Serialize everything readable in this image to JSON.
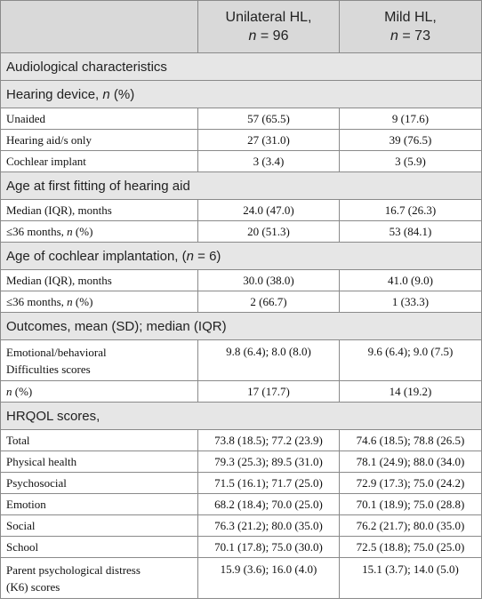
{
  "header": {
    "col1": "",
    "col2_line1": "Unilateral HL,",
    "col2_n": "n",
    "col2_line2_rest": " = 96",
    "col3_line1": "Mild HL,",
    "col3_n": "n",
    "col3_line2_rest": " = 73"
  },
  "sections": {
    "audiological": "Audiological characteristics",
    "hearing_device_pre": "Hearing device, ",
    "hearing_device_n": "n",
    "hearing_device_post": " (%)",
    "age_fitting": "Age at first fitting of hearing aid",
    "age_ci_pre": "Age of cochlear implantation, (",
    "age_ci_n": "n",
    "age_ci_post": " = 6)",
    "outcomes": "Outcomes, mean (SD); median (IQR)",
    "hrqol": "HRQOL scores,"
  },
  "rows": {
    "unaided": {
      "label": "Unaided",
      "v1": "57 (65.5)",
      "v2": "9 (17.6)"
    },
    "hearing_aid": {
      "label": "Hearing aid/s only",
      "v1": "27 (31.0)",
      "v2": "39 (76.5)"
    },
    "cochlear": {
      "label": "Cochlear implant",
      "v1": "3 (3.4)",
      "v2": "3 (5.9)"
    },
    "fit_median": {
      "label": "Median (IQR), months",
      "v1": "24.0 (47.0)",
      "v2": "16.7 (26.3)"
    },
    "fit_36": {
      "label_pre": "≤36 months, ",
      "label_n": "n",
      "label_post": " (%)",
      "v1": "20 (51.3)",
      "v2": "53 (84.1)"
    },
    "ci_median": {
      "label": "Median (IQR), months",
      "v1": "30.0 (38.0)",
      "v2": "41.0 (9.0)"
    },
    "ci_36": {
      "label_pre": "≤36 months, ",
      "label_n": "n",
      "label_post": " (%)",
      "v1": "2 (66.7)",
      "v2": "1 (33.3)"
    },
    "emotional": {
      "label_l1": "Emotional/behavioral",
      "label_l2": "Difficulties scores",
      "v1": "9.8 (6.4); 8.0 (8.0)",
      "v2": "9.6 (6.4); 9.0 (7.5)"
    },
    "n_pct": {
      "label_n": "n",
      "label_post": " (%)",
      "v1": "17 (17.7)",
      "v2": "14 (19.2)"
    },
    "total": {
      "label": "Total",
      "v1": "73.8 (18.5); 77.2 (23.9)",
      "v2": "74.6 (18.5); 78.8 (26.5)"
    },
    "physical": {
      "label": "Physical health",
      "v1": "79.3 (25.3); 89.5 (31.0)",
      "v2": "78.1 (24.9); 88.0 (34.0)"
    },
    "psychosocial": {
      "label": "Psychosocial",
      "v1": "71.5 (16.1); 71.7 (25.0)",
      "v2": "72.9 (17.3); 75.0 (24.2)"
    },
    "emotion": {
      "label": "Emotion",
      "v1": "68.2 (18.4); 70.0 (25.0)",
      "v2": "70.1 (18.9); 75.0 (28.8)"
    },
    "social": {
      "label": "Social",
      "v1": "76.3 (21.2); 80.0 (35.0)",
      "v2": "76.2 (21.7); 80.0 (35.0)"
    },
    "school": {
      "label": "School",
      "v1": "70.1 (17.8); 75.0 (30.0)",
      "v2": "72.5 (18.8); 75.0 (25.0)"
    },
    "parent": {
      "label_l1": "Parent psychological distress",
      "label_l2": "(K6) scores",
      "v1": "15.9 (3.6); 16.0 (4.0)",
      "v2": "15.1 (3.7); 14.0 (5.0)"
    }
  }
}
